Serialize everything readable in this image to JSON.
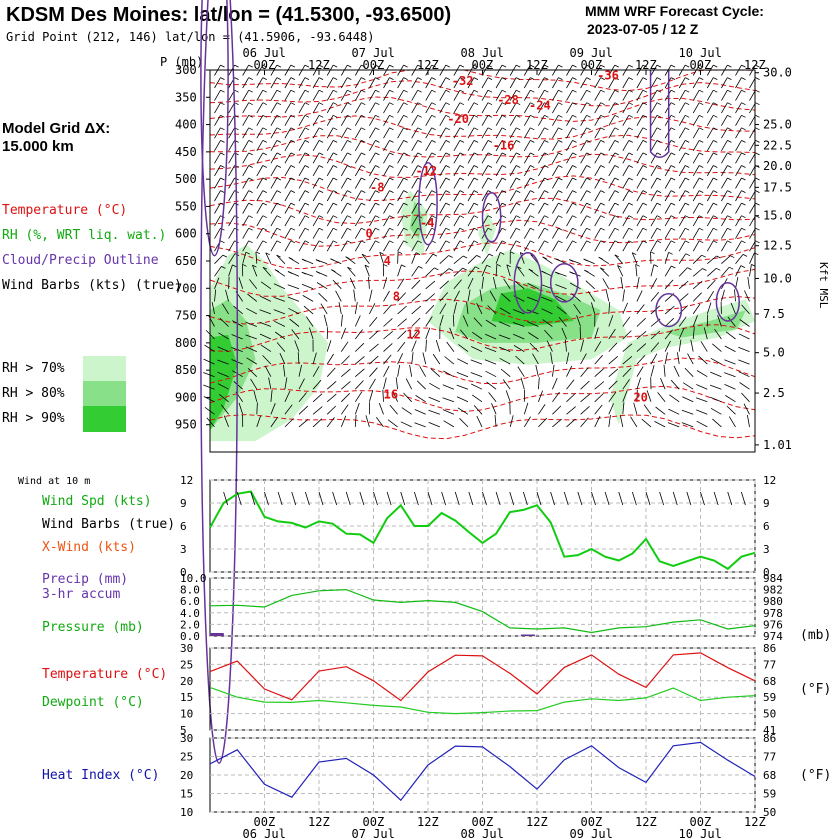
{
  "header": {
    "title": "KDSM Des Moines:  lat/lon = (41.5300, -93.6500)",
    "grid_point": "Grid Point (212, 146) lat/lon = (41.5906, -93.6448)",
    "cycle_line1": "MMM WRF Forecast Cycle:",
    "cycle_line2": "2023-07-05 / 12  Z",
    "model_grid_line1": "Model Grid ΔX:",
    "model_grid_line2": " 15.000 km",
    "pressure_axis_label": "P (mb)",
    "kft_label": "Kft MSL"
  },
  "legend": {
    "temperature": "Temperature (°C)",
    "rh": "RH (%, WRT liq. wat.)",
    "cloud": "Cloud/Precip Outline",
    "wind_barbs": "Wind Barbs (kts) (true)",
    "rh70": "RH > 70%",
    "rh80": "RH > 80%",
    "rh90": "RH > 90%"
  },
  "colors": {
    "temp": "#dd1111",
    "rh70": "#ccf5cc",
    "rh80": "#88e088",
    "rh90": "#33cc33",
    "cloud": "#663399",
    "wind": "#11cc11",
    "pressure": "#11bb11",
    "dew": "#22cc22",
    "heat": "#2222bb",
    "precip": "#663399"
  },
  "time_axis": {
    "ticks": [
      "00Z",
      "12Z",
      "00Z",
      "12Z",
      "00Z",
      "12Z",
      "00Z",
      "12Z",
      "00Z",
      "12Z"
    ],
    "tick_hours": [
      12,
      24,
      36,
      48,
      60,
      72,
      84,
      96,
      108,
      120
    ],
    "dates": [
      "06 Jul",
      "07 Jul",
      "08 Jul",
      "09 Jul",
      "10 Jul"
    ],
    "date_hours": [
      12,
      36,
      60,
      84,
      108
    ],
    "xlim": [
      0,
      120
    ]
  },
  "panels": {
    "wind10m_label": "Wind at 10 m",
    "wind_spd": "Wind Spd (kts)",
    "wind_barbs": "Wind Barbs (true)",
    "xwind": "X-Wind (kts)",
    "precip": "Precip (mm)",
    "precip2": "3-hr accum",
    "pressure": "Pressure (mb)",
    "mb_unit": "(mb)",
    "temp": "Temperature (°C)",
    "dew": "Dewpoint (°C)",
    "degF": "(°F)",
    "heat": "Heat Index (°C)",
    "degF2": "(°F)"
  },
  "chart_data": [
    {
      "type": "heatmap",
      "name": "cross-section",
      "y_axis": {
        "label": "P (mb)",
        "ticks": [
          300,
          350,
          400,
          450,
          500,
          550,
          600,
          650,
          700,
          750,
          800,
          850,
          900,
          950
        ],
        "ylim": [
          1000,
          300
        ]
      },
      "y2_axis": {
        "label": "Kft MSL",
        "ticks": [
          "30.0",
          "25.0",
          "22.5",
          "20.0",
          "17.5",
          "15.0",
          "12.5",
          "10.0",
          "7.5",
          "5.0",
          "2.5",
          "1.01"
        ],
        "tick_pressures": [
          305,
          400,
          438,
          476,
          515,
          567,
          622,
          682,
          747,
          818,
          892,
          987
        ]
      },
      "temperature_labels": [
        {
          "text": "-36",
          "hour": 87,
          "p": 310
        },
        {
          "text": "-32",
          "hour": 55,
          "p": 320
        },
        {
          "text": "-28",
          "hour": 65,
          "p": 355
        },
        {
          "text": "-24",
          "hour": 72,
          "p": 365
        },
        {
          "text": "-20",
          "hour": 54,
          "p": 390
        },
        {
          "text": "-16",
          "hour": 64,
          "p": 438
        },
        {
          "text": "-12",
          "hour": 47,
          "p": 485
        },
        {
          "text": "-8",
          "hour": 37,
          "p": 515
        },
        {
          "text": "-4",
          "hour": 48,
          "p": 580
        },
        {
          "text": "0",
          "hour": 36,
          "p": 600
        },
        {
          "text": "4",
          "hour": 40,
          "p": 650
        },
        {
          "text": "8",
          "hour": 42,
          "p": 715
        },
        {
          "text": "12",
          "hour": 45,
          "p": 785
        },
        {
          "text": "16",
          "hour": 40,
          "p": 895
        },
        {
          "text": "20",
          "hour": 95,
          "p": 900
        }
      ]
    },
    {
      "type": "line",
      "name": "wind-speed",
      "ylim": [
        0,
        12
      ],
      "ticks": [
        0,
        3,
        6,
        9,
        12
      ],
      "x": [
        0,
        3,
        6,
        9,
        12,
        15,
        18,
        21,
        24,
        27,
        30,
        33,
        36,
        39,
        42,
        45,
        48,
        51,
        54,
        57,
        60,
        63,
        66,
        69,
        72,
        75,
        78,
        81,
        84,
        87,
        90,
        93,
        96,
        99,
        102,
        105,
        108,
        111,
        114,
        117,
        120
      ],
      "series": [
        {
          "values": [
            5.8,
            9,
            10.2,
            10.5,
            7.2,
            6.6,
            6.4,
            5.8,
            6.6,
            6.3,
            5.0,
            4.9,
            3.8,
            7.0,
            8.7,
            6.0,
            6.0,
            7.7,
            6.7,
            5.2,
            3.8,
            5.0,
            7.8,
            8.1,
            8.7,
            6.5,
            2.0,
            2.2,
            3.0,
            2.0,
            1.5,
            2.4,
            4.3,
            1.4,
            0.8,
            1.4,
            2.0,
            1.5,
            0.4,
            2.0,
            2.5
          ]
        }
      ]
    },
    {
      "type": "line",
      "name": "pressure",
      "ylim": [
        974,
        984
      ],
      "ticks": [
        974,
        976,
        978,
        980,
        982,
        984
      ],
      "y2_label_ticks": [
        "0.0",
        "2.0",
        "4.0",
        "6.0",
        "8.0",
        "10.0"
      ],
      "x": [
        0,
        6,
        12,
        18,
        24,
        30,
        36,
        42,
        48,
        54,
        60,
        66,
        72,
        78,
        84,
        90,
        96,
        102,
        108,
        114,
        120
      ],
      "series": [
        {
          "values": [
            979.2,
            979.3,
            979.0,
            981,
            981.8,
            982.0,
            980.2,
            979.8,
            980.1,
            979.8,
            978.2,
            975.4,
            975.2,
            975.4,
            974.6,
            975.4,
            975.6,
            976.4,
            976.8,
            975.2,
            975.8
          ]
        }
      ],
      "precip_bars": [
        {
          "hour": 1.5,
          "mm": 0.6
        },
        {
          "hour": 70,
          "mm": 0.3
        }
      ]
    },
    {
      "type": "line",
      "name": "temp-dewpoint",
      "ylim": [
        5,
        30
      ],
      "ticks": [
        5,
        10,
        15,
        20,
        25,
        30
      ],
      "y2_ticks": [
        "41",
        "50",
        "59",
        "68",
        "77",
        "86"
      ],
      "x": [
        0,
        6,
        12,
        18,
        24,
        30,
        36,
        42,
        48,
        54,
        60,
        66,
        72,
        78,
        84,
        90,
        96,
        102,
        108,
        114,
        120
      ],
      "series": [
        {
          "values": [
            22.8,
            26.0,
            17.5,
            14.2,
            23.0,
            24.3,
            20.0,
            14.0,
            22.7,
            27.8,
            27.6,
            22.3,
            16.0,
            24.1,
            27.9,
            22.0,
            18.0,
            27.9,
            28.5,
            24.0,
            20.0
          ]
        },
        {
          "values": [
            18.0,
            15.0,
            13.5,
            13.4,
            14.0,
            13.3,
            12.5,
            12.0,
            10.4,
            10.0,
            10.3,
            10.8,
            10.9,
            13.5,
            14.5,
            14.0,
            14.8,
            17.8,
            14.0,
            15.0,
            15.5
          ]
        }
      ]
    },
    {
      "type": "line",
      "name": "heat-index",
      "ylim": [
        10,
        30
      ],
      "ticks": [
        10,
        15,
        20,
        25,
        30
      ],
      "y2_ticks": [
        "50",
        "59",
        "68",
        "77",
        "86"
      ],
      "x": [
        0,
        6,
        12,
        18,
        24,
        30,
        36,
        42,
        48,
        54,
        60,
        66,
        72,
        78,
        84,
        90,
        96,
        102,
        108,
        114,
        120
      ],
      "series": [
        {
          "values": [
            23.0,
            26.8,
            17.5,
            14.0,
            23.5,
            24.5,
            20.0,
            13.2,
            22.7,
            27.8,
            27.6,
            22.3,
            16.2,
            24.1,
            27.9,
            22.0,
            18.0,
            27.9,
            28.8,
            24.0,
            19.6
          ]
        }
      ]
    }
  ]
}
